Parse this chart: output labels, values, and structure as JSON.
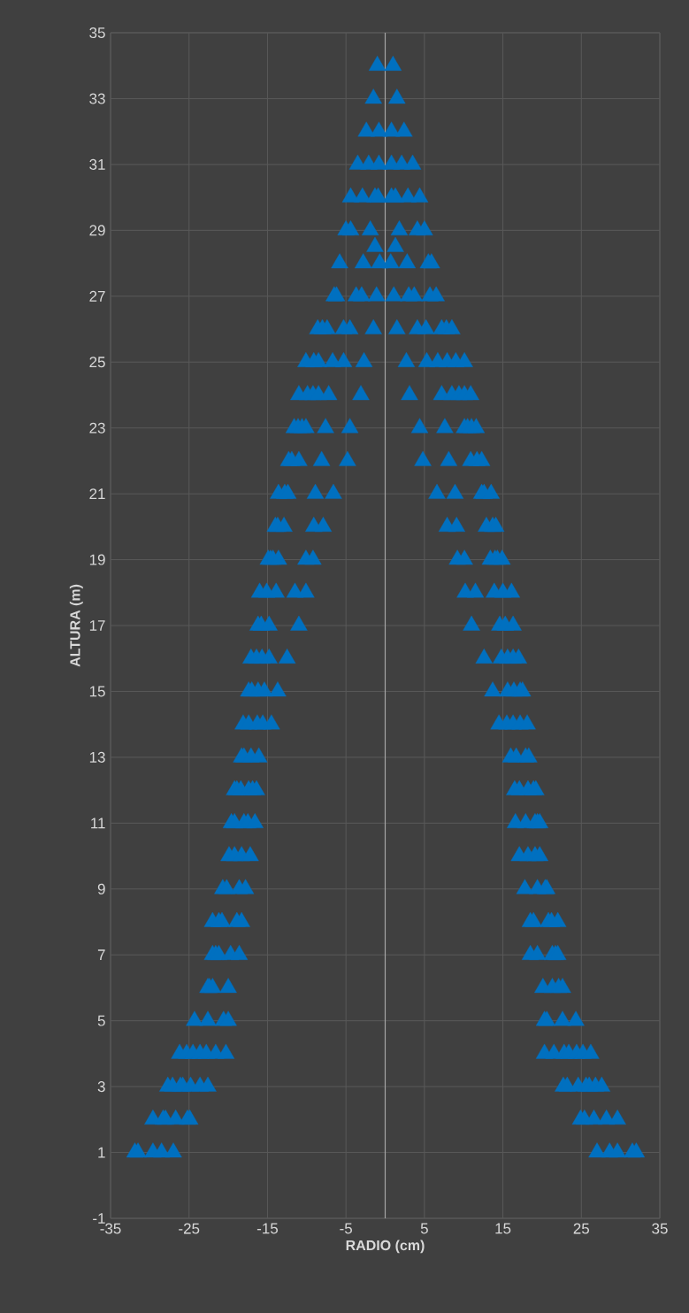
{
  "chart_data": {
    "type": "scatter",
    "xlabel": "RADIO (cm)",
    "ylabel": "ALTURA (m)",
    "color": "#0070c0",
    "marker": "triangle",
    "grid": true,
    "xlim": [
      -35,
      35
    ],
    "ylim": [
      -1,
      35
    ],
    "xticks": [
      -35,
      -25,
      -15,
      -5,
      5,
      15,
      25,
      35
    ],
    "yticks": [
      -1,
      1,
      3,
      5,
      7,
      9,
      11,
      13,
      15,
      17,
      19,
      21,
      23,
      25,
      27,
      29,
      31,
      33,
      35
    ],
    "ref_lines": [
      {
        "axis": "x",
        "value": 0,
        "color": "#a6a6a6"
      }
    ],
    "x": [
      -1.0,
      1.0,
      -1.5,
      1.5,
      -2.4,
      -0.8,
      0.8,
      2.4,
      -3.5,
      -2.1,
      -0.8,
      0.8,
      2.1,
      3.5,
      -4.4,
      -2.9,
      -1.3,
      -0.9,
      0.8,
      1.3,
      2.9,
      4.4,
      -5.0,
      -4.4,
      -1.9,
      1.8,
      4.1,
      5.0,
      -1.3,
      1.3,
      -5.8,
      -2.8,
      -0.7,
      0.7,
      2.8,
      5.5,
      5.9,
      -6.5,
      -6.2,
      -3.7,
      -3.0,
      -1.1,
      1.1,
      3.0,
      3.7,
      5.7,
      6.5,
      -8.6,
      -8.0,
      -7.4,
      -5.3,
      -4.5,
      -1.5,
      1.5,
      4.1,
      5.2,
      7.2,
      7.8,
      8.5,
      -10.1,
      -9.1,
      -8.5,
      -6.7,
      -5.3,
      -2.7,
      2.7,
      5.3,
      6.7,
      7.9,
      9.0,
      10.1,
      -11.0,
      -9.9,
      -9.2,
      -8.5,
      -7.2,
      -3.1,
      3.1,
      7.2,
      8.5,
      9.4,
      10.1,
      10.9,
      -11.6,
      -11.1,
      -10.6,
      -10.1,
      -7.6,
      -4.5,
      4.4,
      7.6,
      10.1,
      10.5,
      11.0,
      11.6,
      -12.3,
      -11.9,
      -11.0,
      -8.1,
      -4.8,
      4.8,
      8.1,
      10.9,
      11.7,
      12.3,
      -13.6,
      -12.8,
      -12.4,
      -8.9,
      -6.6,
      6.6,
      8.9,
      12.3,
      12.6,
      13.5,
      -14.0,
      -13.7,
      -12.9,
      -9.1,
      -7.9,
      7.9,
      9.1,
      12.9,
      13.7,
      14.1,
      -14.9,
      -14.6,
      -14.3,
      -13.6,
      -10.1,
      -9.2,
      9.2,
      10.1,
      13.4,
      14.0,
      14.3,
      14.9,
      -16.0,
      -15.1,
      -13.9,
      -11.5,
      -10.1,
      10.2,
      11.5,
      13.9,
      15.0,
      16.1,
      -16.2,
      -15.8,
      -14.8,
      -11.0,
      11.0,
      14.6,
      15.3,
      16.3,
      -17.1,
      -16.4,
      -15.7,
      -14.8,
      -12.5,
      12.6,
      14.8,
      15.6,
      16.3,
      17.0,
      -17.4,
      -17.0,
      -16.2,
      -15.4,
      -13.7,
      13.7,
      15.6,
      16.4,
      17.2,
      17.5,
      -18.1,
      -17.4,
      -16.3,
      -15.6,
      -14.5,
      14.5,
      15.5,
      16.3,
      17.2,
      18.1,
      -18.3,
      -18.0,
      -17.1,
      -16.1,
      16.0,
      16.7,
      17.9,
      18.3,
      -19.2,
      -18.9,
      -18.4,
      -17.4,
      -16.9,
      -16.4,
      16.5,
      17.1,
      18.2,
      18.9,
      19.2,
      -19.6,
      -19.2,
      -18.0,
      -17.5,
      -16.6,
      16.6,
      17.9,
      19.1,
      19.4,
      19.7,
      -19.9,
      -19.2,
      -18.3,
      -17.2,
      17.1,
      18.2,
      19.1,
      19.7,
      -20.7,
      -20.2,
      -18.6,
      -17.8,
      17.8,
      19.4,
      20.4,
      20.6,
      -22.0,
      -21.2,
      -20.8,
      -18.9,
      -18.3,
      18.5,
      18.9,
      20.8,
      21.2,
      22.0,
      -22.0,
      -21.6,
      -21.2,
      -19.7,
      -18.6,
      18.5,
      19.4,
      21.3,
      21.7,
      22.0,
      -22.6,
      -22.4,
      -22.0,
      -20.0,
      20.1,
      21.3,
      22.1,
      22.6,
      -24.3,
      -22.6,
      -20.6,
      -20.0,
      20.3,
      20.6,
      22.6,
      24.3,
      -26.2,
      -25.3,
      -24.5,
      -23.6,
      -22.8,
      -21.6,
      -20.3,
      20.3,
      21.5,
      22.8,
      23.4,
      24.4,
      25.2,
      26.2,
      -27.7,
      -27.1,
      -26.1,
      -25.8,
      -24.8,
      -23.6,
      -22.6,
      22.7,
      23.2,
      24.6,
      25.6,
      26.0,
      26.8,
      27.6,
      -29.6,
      -28.3,
      -28.0,
      -26.7,
      -25.2,
      -24.9,
      24.9,
      25.4,
      26.6,
      28.2,
      29.6,
      -31.9,
      -31.5,
      -29.6,
      -28.5,
      -27.0,
      27.0,
      28.6,
      29.6,
      31.5,
      32.0
    ],
    "values": [
      34,
      34,
      33,
      33,
      32,
      32,
      32,
      32,
      31,
      31,
      31,
      31,
      31,
      31,
      30,
      30,
      30,
      30,
      30,
      30,
      30,
      30,
      29,
      29,
      29,
      29,
      29,
      29,
      28.5,
      28.5,
      28,
      28,
      28,
      28,
      28,
      28,
      28,
      27,
      27,
      27,
      27,
      27,
      27,
      27,
      27,
      27,
      27,
      26,
      26,
      26,
      26,
      26,
      26,
      26,
      26,
      26,
      26,
      26,
      26,
      25,
      25,
      25,
      25,
      25,
      25,
      25,
      25,
      25,
      25,
      25,
      25,
      24,
      24,
      24,
      24,
      24,
      24,
      24,
      24,
      24,
      24,
      24,
      24,
      23,
      23,
      23,
      23,
      23,
      23,
      23,
      23,
      23,
      23,
      23,
      23,
      22,
      22,
      22,
      22,
      22,
      22,
      22,
      22,
      22,
      22,
      21,
      21,
      21,
      21,
      21,
      21,
      21,
      21,
      21,
      21,
      20,
      20,
      20,
      20,
      20,
      20,
      20,
      20,
      20,
      20,
      19,
      19,
      19,
      19,
      19,
      19,
      19,
      19,
      19,
      19,
      19,
      19,
      18,
      18,
      18,
      18,
      18,
      18,
      18,
      18,
      18,
      18,
      17,
      17,
      17,
      17,
      17,
      17,
      17,
      17,
      16,
      16,
      16,
      16,
      16,
      16,
      16,
      16,
      16,
      16,
      15,
      15,
      15,
      15,
      15,
      15,
      15,
      15,
      15,
      15,
      14,
      14,
      14,
      14,
      14,
      14,
      14,
      14,
      14,
      14,
      13,
      13,
      13,
      13,
      13,
      13,
      13,
      13,
      12,
      12,
      12,
      12,
      12,
      12,
      12,
      12,
      12,
      12,
      12,
      11,
      11,
      11,
      11,
      11,
      11,
      11,
      11,
      11,
      11,
      10,
      10,
      10,
      10,
      10,
      10,
      10,
      10,
      9,
      9,
      9,
      9,
      9,
      9,
      9,
      9,
      8,
      8,
      8,
      8,
      8,
      8,
      8,
      8,
      8,
      8,
      7,
      7,
      7,
      7,
      7,
      7,
      7,
      7,
      7,
      7,
      6,
      6,
      6,
      6,
      6,
      6,
      6,
      6,
      5,
      5,
      5,
      5,
      5,
      5,
      5,
      5,
      4,
      4,
      4,
      4,
      4,
      4,
      4,
      4,
      4,
      4,
      4,
      4,
      4,
      4,
      3,
      3,
      3,
      3,
      3,
      3,
      3,
      3,
      3,
      3,
      3,
      3,
      3,
      3,
      2,
      2,
      2,
      2,
      2,
      2,
      2,
      2,
      2,
      2,
      2,
      1,
      1,
      1,
      1,
      1,
      1,
      1,
      1,
      1,
      1
    ]
  }
}
